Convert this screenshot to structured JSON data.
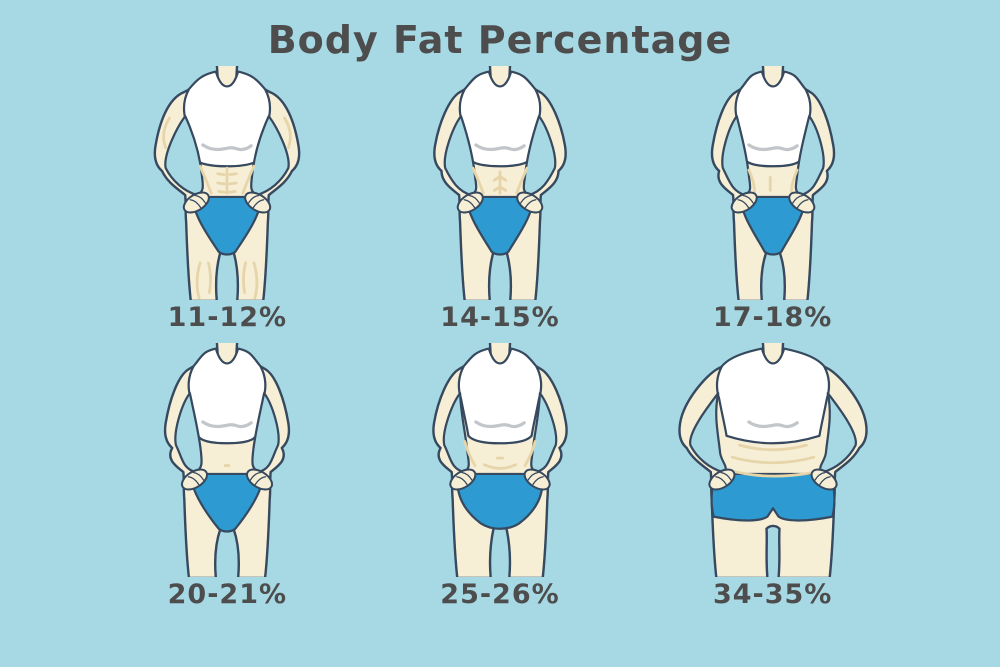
{
  "title": "Body Fat Percentage",
  "figures": [
    {
      "label": "11-12%",
      "variant": "defined-athletic"
    },
    {
      "label": "14-15%",
      "variant": "athletic"
    },
    {
      "label": "17-18%",
      "variant": "fit"
    },
    {
      "label": "20-21%",
      "variant": "average"
    },
    {
      "label": "25-26%",
      "variant": "above-average"
    },
    {
      "label": "34-35%",
      "variant": "heavy"
    }
  ],
  "colors": {
    "background": "#a7d9e5",
    "skin": "#f7eed6",
    "outline": "#36495e",
    "top_white": "#ffffff",
    "bottom_blue": "#2d9bd2",
    "detail_tan": "#e7d5aa",
    "bust_line_gray": "#c2c6ca",
    "text": "#4d4d4d"
  }
}
